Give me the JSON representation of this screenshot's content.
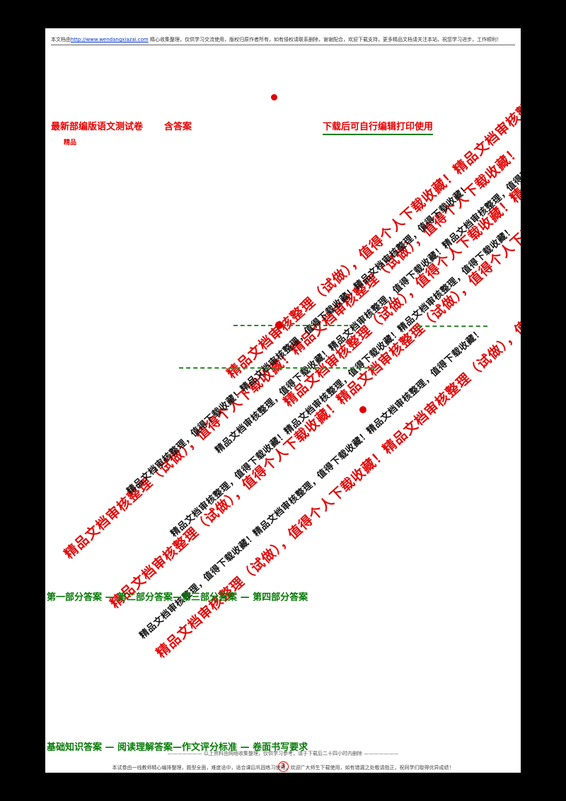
{
  "document": {
    "header": {
      "prefix": "本文档由",
      "link": "http://www.wendangxiazai.com",
      "suffix": " 精心收集整理，仅供学习交流使用，版权归原作者所有，如有侵权请联系删除，谢谢配合，欢迎下载支持，更多精品文档请关注本站，祝您学习进步，工作顺利！"
    },
    "heading": {
      "left": "最新部编版语文测试卷",
      "middle": "含答案",
      "right": "下载后可自行编辑打印使用",
      "sub": "精品"
    },
    "watermark": {
      "red_text": "精品文档审核整理（试做），值得个人下载收藏！精品文档审核整理（试做），值得个人下载收藏！",
      "black_text": "精品文档审核整理，值得下载收藏！精品文档审核整理，值得下载收藏！精品文档审核整理，值得下载收藏！"
    },
    "green_notes": {
      "line1": "第一部分答案 — 第二部分答案—第三部分答案 — 第四部分答案",
      "line2": "基础知识答案 — 阅读理解答案—作文评分标准 — 卷面书写要求"
    },
    "footer": {
      "center_note": "——————— 以上资料由网络收集整理，仅供学习参考，请于下载后二十四小时内删除 ———————",
      "page_number": "3",
      "bottom_text": "本试卷由一线教师精心编排整理，题型全面，难度适中，适合课后巩固练习使用，欢迎广大师生下载使用，如有错漏之处敬请指正，祝同学们取得优异成绩！"
    },
    "colors": {
      "watermark_red": "#e00000",
      "accent_green": "#067a06",
      "link_blue": "#0033cc"
    }
  }
}
